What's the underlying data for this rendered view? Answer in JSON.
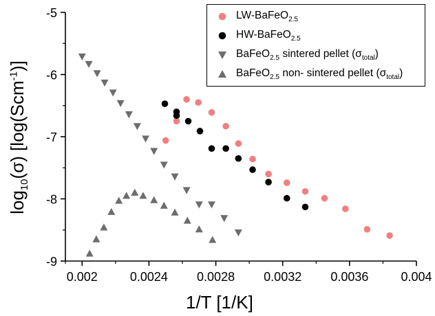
{
  "chart_data": {
    "type": "scatter",
    "xlabel": "1/T [1/K]",
    "ylabel_parts": [
      "log",
      "10",
      "(σ) [log(Scm",
      "-1",
      ")]"
    ],
    "xlim": [
      0.0019,
      0.004
    ],
    "ylim": [
      -9,
      -5
    ],
    "x_ticks": [
      "0.002",
      "0.0024",
      "0.0028",
      "0.0032",
      "0.0036",
      "0.004"
    ],
    "x_tick_values": [
      0.002,
      0.0024,
      0.0028,
      0.0032,
      0.0036,
      0.004
    ],
    "y_ticks": [
      "-5",
      "-6",
      "-7",
      "-8",
      "-9"
    ],
    "y_tick_values": [
      -5,
      -6,
      -7,
      -8,
      -9
    ],
    "grid": false,
    "legend_position": "top-right",
    "series": [
      {
        "name_parts": [
          "LW-BaFeO",
          "2.5",
          ""
        ],
        "marker": "circle",
        "color": "#f08080",
        "points": [
          [
            0.0025,
            -7.06
          ],
          [
            0.002565,
            -6.75
          ],
          [
            0.002625,
            -6.4
          ],
          [
            0.002695,
            -6.45
          ],
          [
            0.002775,
            -6.61
          ],
          [
            0.00286,
            -6.83
          ],
          [
            0.002935,
            -7.11
          ],
          [
            0.00302,
            -7.36
          ],
          [
            0.003115,
            -7.6
          ],
          [
            0.003225,
            -7.74
          ],
          [
            0.003335,
            -7.88
          ],
          [
            0.00345,
            -7.99
          ],
          [
            0.003575,
            -8.16
          ],
          [
            0.003705,
            -8.49
          ],
          [
            0.00384,
            -8.59
          ]
        ]
      },
      {
        "name_parts": [
          "HW-BaFeO",
          "2.5",
          ""
        ],
        "marker": "circle",
        "color": "#000000",
        "points": [
          [
            0.002495,
            -6.47
          ],
          [
            0.002565,
            -6.6
          ],
          [
            0.002565,
            -6.66
          ],
          [
            0.002635,
            -6.75
          ],
          [
            0.002705,
            -6.91
          ],
          [
            0.002775,
            -7.19
          ],
          [
            0.00286,
            -7.19
          ],
          [
            0.002935,
            -7.35
          ],
          [
            0.00302,
            -7.53
          ],
          [
            0.003115,
            -7.73
          ],
          [
            0.003225,
            -7.99
          ],
          [
            0.003335,
            -8.13
          ]
        ]
      },
      {
        "name_parts": [
          "BaFeO",
          "2.5",
          " sintered pellet (σ",
          "total",
          ")"
        ],
        "marker": "triangle-down",
        "color": "#6d6d6d",
        "points": [
          [
            0.002,
            -5.71
          ],
          [
            0.00204,
            -5.83
          ],
          [
            0.00209,
            -5.98
          ],
          [
            0.002135,
            -6.13
          ],
          [
            0.002185,
            -6.29
          ],
          [
            0.00223,
            -6.46
          ],
          [
            0.00228,
            -6.64
          ],
          [
            0.00233,
            -6.83
          ],
          [
            0.00238,
            -7.03
          ],
          [
            0.00243,
            -7.23
          ],
          [
            0.00249,
            -7.45
          ],
          [
            0.002555,
            -7.64
          ],
          [
            0.002625,
            -7.86
          ],
          [
            0.0027,
            -8.09
          ],
          [
            0.002775,
            -8.09
          ],
          [
            0.00285,
            -8.31
          ],
          [
            0.002935,
            -8.54
          ]
        ]
      },
      {
        "name_parts": [
          "BaFeO",
          "2.5",
          " non- sintered pellet (σ",
          "total",
          ")"
        ],
        "marker": "triangle-up",
        "color": "#6d6d6d",
        "points": [
          [
            0.002045,
            -8.88
          ],
          [
            0.002085,
            -8.65
          ],
          [
            0.00213,
            -8.46
          ],
          [
            0.002175,
            -8.21
          ],
          [
            0.00222,
            -8.03
          ],
          [
            0.002265,
            -7.95
          ],
          [
            0.002315,
            -7.9
          ],
          [
            0.002365,
            -7.95
          ],
          [
            0.00243,
            -8.02
          ],
          [
            0.00249,
            -8.11
          ],
          [
            0.002555,
            -8.22
          ],
          [
            0.00263,
            -8.35
          ],
          [
            0.0027,
            -8.49
          ],
          [
            0.00278,
            -8.66
          ]
        ]
      }
    ]
  }
}
